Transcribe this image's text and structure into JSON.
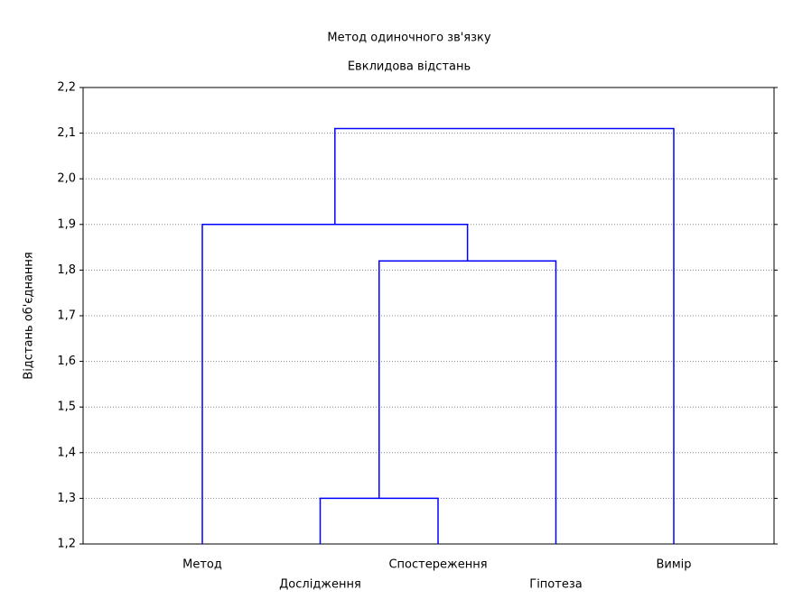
{
  "chart_data": {
    "type": "dendrogram",
    "title": "Метод одиночного зв'язку",
    "subtitle": "Евклидова відстань",
    "y_label": "Відстань об'єднання",
    "leaves": [
      "Метод",
      "Дослідження",
      "Спостереження",
      "Гіпотеза",
      "Вимір"
    ],
    "merges": [
      {
        "children": [
          1,
          2
        ],
        "height": 1.3
      },
      {
        "children": [
          5,
          3
        ],
        "height": 1.82
      },
      {
        "children": [
          0,
          6
        ],
        "height": 1.9
      },
      {
        "children": [
          7,
          4
        ],
        "height": 2.11
      }
    ],
    "color": "#0000ff",
    "ylim": [
      1.2,
      2.2
    ],
    "yticks": [
      {
        "value": 1.2,
        "label": "1,2"
      },
      {
        "value": 1.3,
        "label": "1,3"
      },
      {
        "value": 1.4,
        "label": "1,4"
      },
      {
        "value": 1.5,
        "label": "1,5"
      },
      {
        "value": 1.6,
        "label": "1,6"
      },
      {
        "value": 1.7,
        "label": "1,7"
      },
      {
        "value": 1.8,
        "label": "1,8"
      },
      {
        "value": 1.9,
        "label": "1,9"
      },
      {
        "value": 2.0,
        "label": "2,0"
      },
      {
        "value": 2.1,
        "label": "2,1"
      },
      {
        "value": 2.2,
        "label": "2,2"
      }
    ],
    "grid": true
  }
}
